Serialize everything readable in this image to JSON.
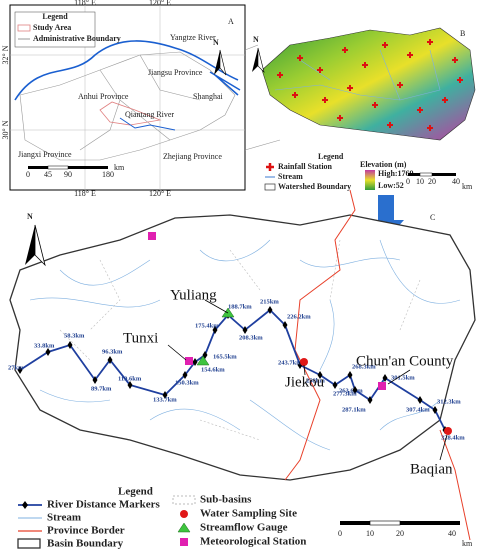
{
  "panel_a": {
    "label": "A",
    "north": "N",
    "legend_title": "Legend",
    "legend_items": [
      "Study Area",
      "Administrative Boundary"
    ],
    "lon_labels": [
      "118° E",
      "120° E"
    ],
    "lat_labels": [
      "32° N",
      "30° N"
    ],
    "places": [
      "Yangtze River",
      "Jiangsu Province",
      "Anhui Province",
      "Shanghai",
      "Qiantang River",
      "Jiangxi Province",
      "Zhejiang Province"
    ],
    "scale": [
      "0",
      "45",
      "90",
      "180",
      "km"
    ]
  },
  "panel_b": {
    "label": "B",
    "north": "N",
    "legend_title": "Legend",
    "legend_items": [
      "Rainfall Station",
      "Stream",
      "Watershed Boundary"
    ],
    "elevation_title": "Elevation (m)",
    "high": "High:1769",
    "low": "Low:52",
    "scale": [
      "0",
      "10",
      "20",
      "40",
      "km"
    ]
  },
  "panel_c": {
    "label": "C",
    "north": "N",
    "places": [
      "Yuliang",
      "Tunxi",
      "Jiekou",
      "Chun'an County",
      "Baqian"
    ],
    "distance_markers": [
      "27km",
      "33.8km",
      "58.3km",
      "89.7km",
      "96.3km",
      "119.6km",
      "133.7km",
      "150.3km",
      "154.6km",
      "165.5km",
      "175.4km",
      "188.7km",
      "208.3km",
      "215km",
      "226.2km",
      "243.7km",
      "258km",
      "263.6km",
      "268.3km",
      "277.3km",
      "287.1km",
      "301.5km",
      "307.4km",
      "312.3km",
      "328.4km"
    ],
    "legend_title": "Legend",
    "legend_items": [
      "River Distance Markers",
      "Stream",
      "Province Border",
      "Basin Boundary",
      "Sub-basins",
      "Water Sampling Site",
      "Streamflow Gauge",
      "Meteorological Station"
    ],
    "scale": [
      "0",
      "10",
      "20",
      "40",
      "km"
    ]
  }
}
